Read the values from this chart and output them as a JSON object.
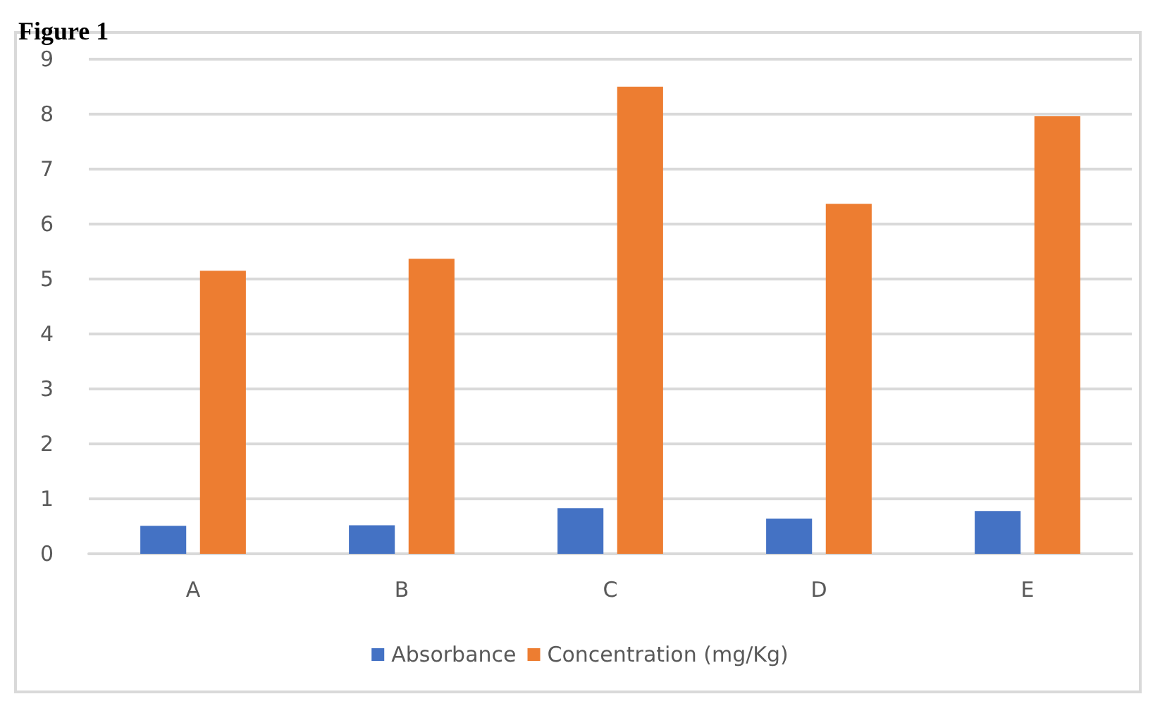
{
  "chart_data": {
    "type": "bar",
    "title": "Figure 1",
    "categories": [
      "A",
      "B",
      "C",
      "D",
      "E"
    ],
    "series": [
      {
        "name": "Absorbance",
        "color": "#4472c4",
        "values": [
          0.51,
          0.52,
          0.83,
          0.64,
          0.78
        ]
      },
      {
        "name": "Concentration (mg/Kg)",
        "color": "#ed7d31",
        "values": [
          5.15,
          5.37,
          8.5,
          6.37,
          7.96
        ]
      }
    ],
    "ylim": [
      0,
      9
    ],
    "yticks": [
      0,
      1,
      2,
      3,
      4,
      5,
      6,
      7,
      8,
      9
    ],
    "grid": "y",
    "legend": "bottom"
  }
}
